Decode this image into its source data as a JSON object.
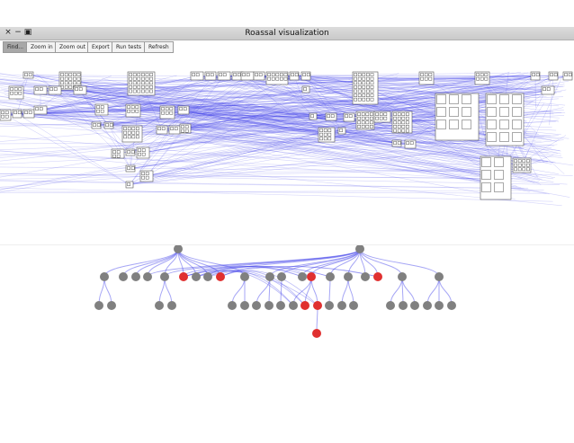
{
  "window": {
    "title": "Roassal visualization",
    "close_glyph": "×",
    "minimize_glyph": "−",
    "maximize_glyph": "▣"
  },
  "toolbar": {
    "buttons": [
      {
        "label": "Find...",
        "active": true
      },
      {
        "label": "Zoom in",
        "active": false
      },
      {
        "label": "Zoom out",
        "active": false
      },
      {
        "label": "Export",
        "active": false
      },
      {
        "label": "Run tests",
        "active": false
      },
      {
        "label": "Refresh",
        "active": false
      }
    ]
  },
  "colors": {
    "edge": "#3a3ae8",
    "node": "#808080",
    "highlight": "#e03030",
    "box_border": "#555555"
  },
  "tree": {
    "roots": [
      {
        "id": "r1",
        "children": [
          "a1",
          "a2",
          "a3",
          "a4",
          "a5",
          "a6",
          "a7",
          "a8",
          "a9",
          "a10"
        ]
      },
      {
        "id": "r2",
        "children": [
          "b1",
          "b2",
          "b3",
          "b4",
          "b5",
          "b6",
          "b7",
          "b8",
          "b9",
          "b10"
        ]
      }
    ],
    "highlighted_nodes": [
      "a6",
      "a9",
      "b2",
      "b6",
      "c14",
      "c15",
      "d1"
    ]
  }
}
